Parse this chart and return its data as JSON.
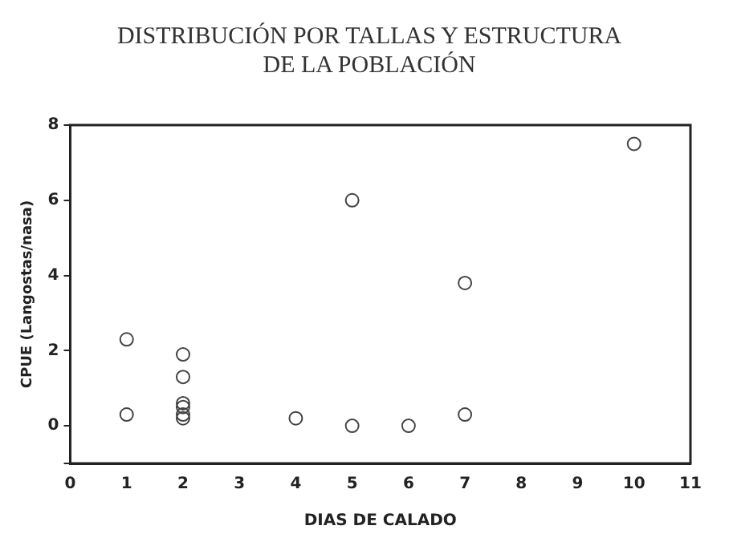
{
  "chart_data": {
    "type": "scatter",
    "title": "DISTRIBUCIÓN POR TALLAS Y ESTRUCTURA DE LA POBLACIÓN",
    "xlabel": "DIAS DE CALADO",
    "ylabel": "CPUE (Langostas/nasa)",
    "series": [
      {
        "color": "#444444",
        "x": [
          1,
          1,
          2,
          2,
          2,
          2,
          2,
          2,
          4,
          5,
          5,
          6,
          7,
          7,
          10
        ],
        "values": [
          2.3,
          0.3,
          1.9,
          1.3,
          0.6,
          0.5,
          0.3,
          0.2,
          0.2,
          6,
          0,
          0,
          3.8,
          0.3,
          7.5
        ]
      }
    ],
    "xlim": [
      0,
      11
    ],
    "xticks": [
      0,
      1,
      2,
      3,
      4,
      5,
      6,
      7,
      8,
      9,
      10,
      11
    ],
    "ylim": [
      -1,
      8
    ],
    "yticks": [
      {
        "value": -1,
        "label": null
      },
      0,
      2,
      4,
      6,
      8
    ],
    "marker": "circle",
    "grid": false,
    "legend": false
  }
}
